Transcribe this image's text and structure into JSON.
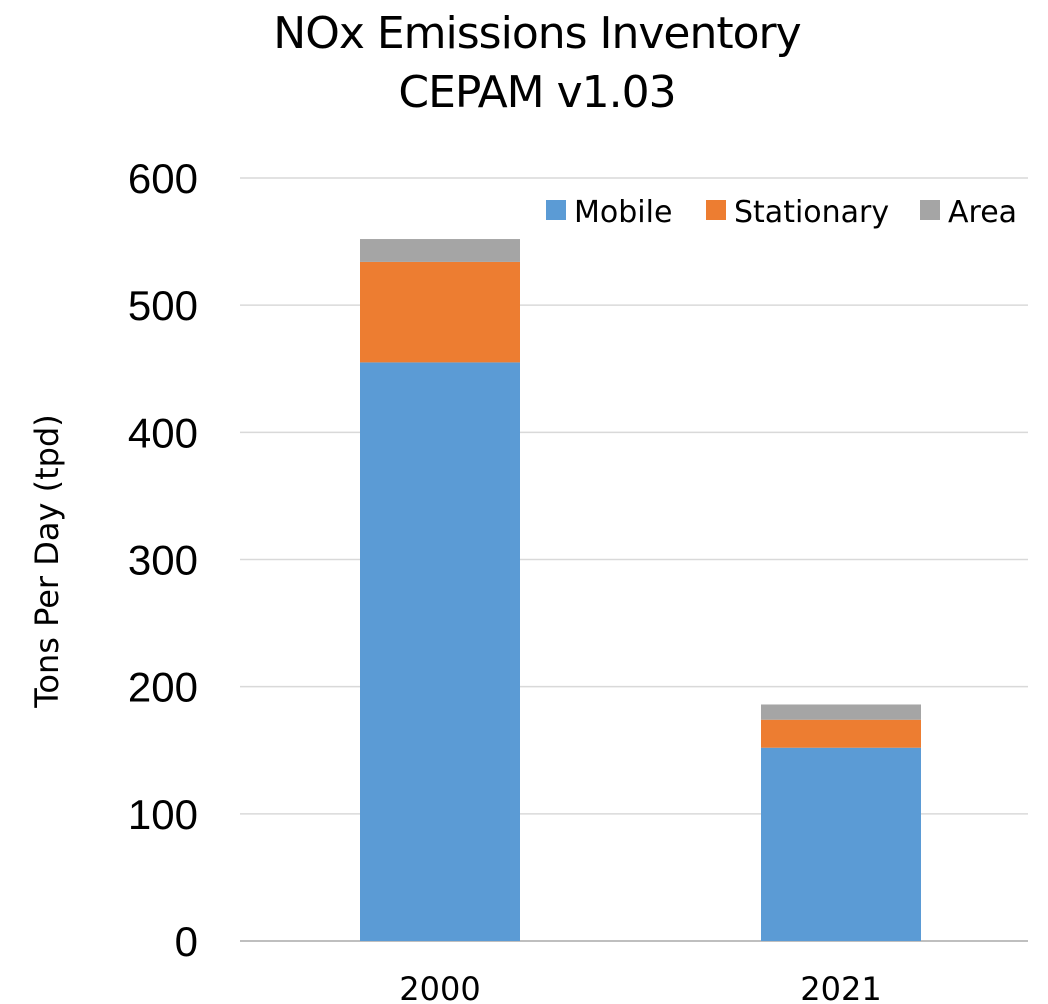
{
  "chart_data": {
    "type": "bar",
    "stacked": true,
    "title": [
      "NOx Emissions Inventory",
      "CEPAM v1.03"
    ],
    "xlabel": "",
    "ylabel": "Tons Per Day (tpd)",
    "categories": [
      "2000",
      "2021"
    ],
    "ylim": [
      0,
      600
    ],
    "yticks": [
      0,
      100,
      200,
      300,
      400,
      500,
      600
    ],
    "grid": true,
    "legend_position": "top-right",
    "series": [
      {
        "name": "Mobile",
        "color": "#5B9BD5",
        "values": [
          455,
          152
        ]
      },
      {
        "name": "Stationary",
        "color": "#ED7D31",
        "values": [
          79,
          22
        ]
      },
      {
        "name": "Area",
        "color": "#A5A5A5",
        "values": [
          18,
          12
        ]
      }
    ]
  }
}
